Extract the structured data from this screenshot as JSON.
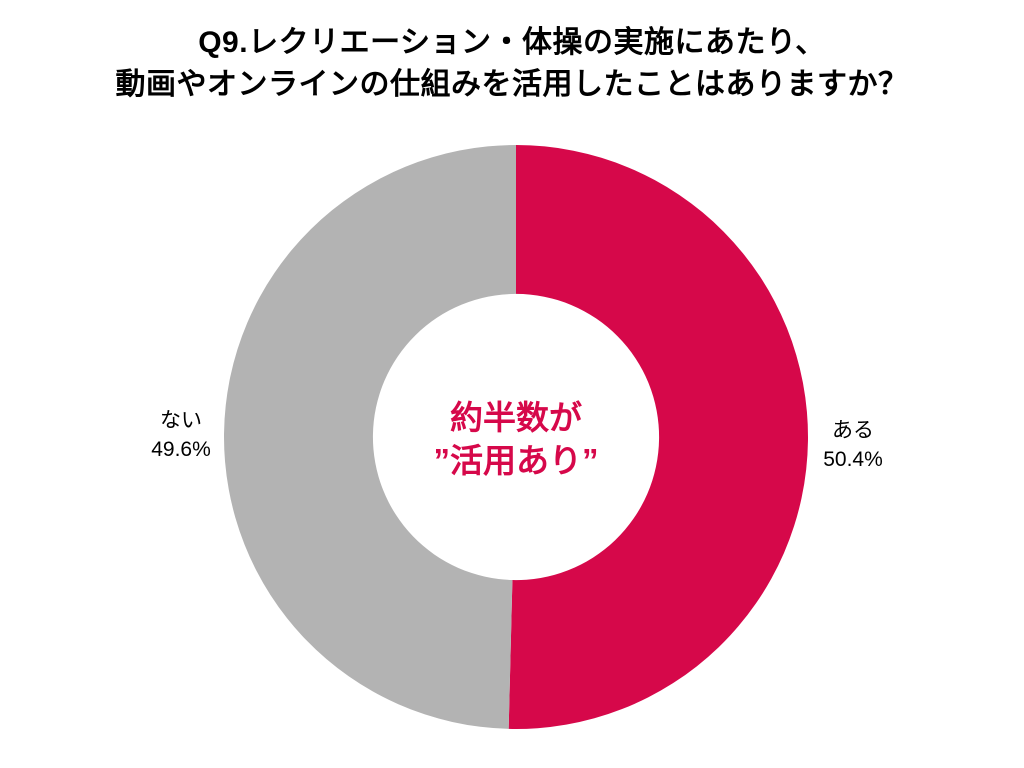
{
  "title": {
    "line1": "Q9.レクリエーション・体操の実施にあたり、",
    "line2": "動画やオンラインの仕組みを活用したことはありますか？"
  },
  "center_label": {
    "line1": "約半数が",
    "line2": "”活用あり”"
  },
  "labels": {
    "right": {
      "name": "ある",
      "value": "50.4%"
    },
    "left": {
      "name": "ない",
      "value": "49.6%"
    }
  },
  "colors": {
    "accent_crimson": "#D6084A",
    "neutral_gray": "#B3B3B3",
    "title_text": "#000000",
    "center_text": "#D6084A",
    "background": "#FFFFFF"
  },
  "chart_data": {
    "type": "pie",
    "subtype": "donut",
    "title": "Q9.レクリエーション・体操の実施にあたり、動画やオンラインの仕組みを活用したことはありますか？",
    "categories": [
      "ある",
      "ない"
    ],
    "values": [
      50.4,
      49.6
    ],
    "unit": "%",
    "slice_colors": [
      "#D6084A",
      "#B3B3B3"
    ],
    "start_angle_deg": 0,
    "direction": "clockwise",
    "donut_hole_ratio": 0.49,
    "center_annotation": "約半数が”活用あり”",
    "legend_position": "none",
    "data_labels": [
      "ある 50.4%",
      "ない 49.6%"
    ]
  }
}
